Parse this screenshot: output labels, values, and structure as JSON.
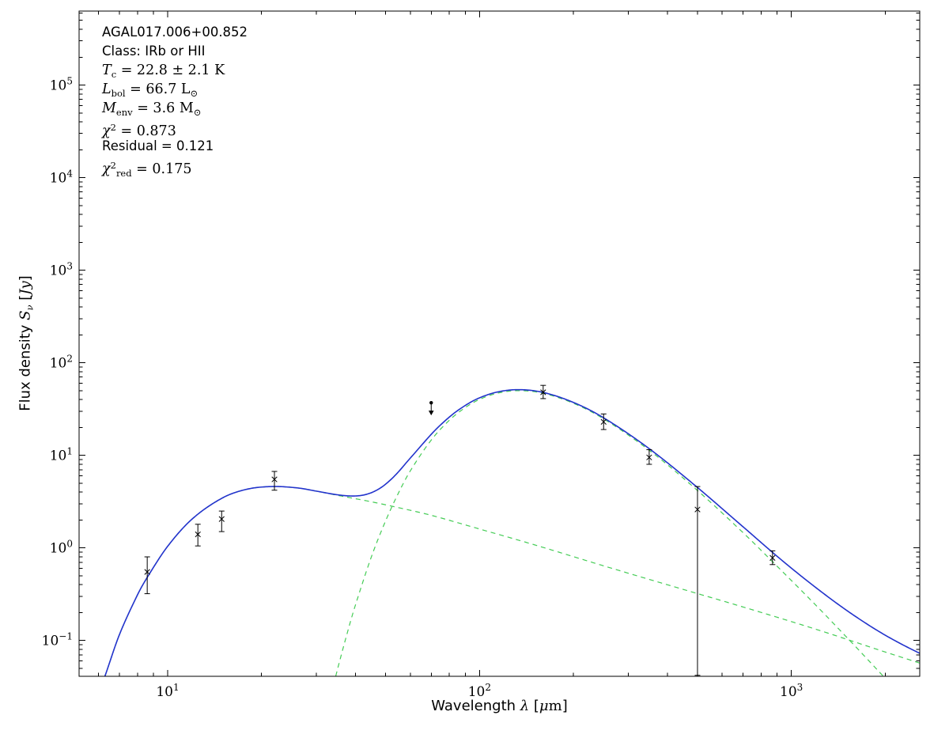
{
  "figure": {
    "background": "#ffffff",
    "frame_color": "#000000",
    "tick_color": "#000000"
  },
  "chart_data": {
    "type": "line",
    "title": "",
    "xscale": "log",
    "yscale": "log",
    "xlim": [
      5.2,
      2580
    ],
    "ylim": [
      0.041,
      630000
    ],
    "grid": false,
    "legend": "none",
    "x_major_ticks": [
      10,
      100,
      1000
    ],
    "y_major_ticks": [
      0.1,
      1,
      10,
      100,
      1000,
      10000,
      100000
    ],
    "xlabel_parts": [
      {
        "t": "Wavelength ",
        "f": "sans"
      },
      {
        "t": "λ",
        "f": "mathit"
      },
      {
        "t": " [",
        "f": "sans"
      },
      {
        "t": "μ",
        "f": "mathit"
      },
      {
        "t": "m",
        "f": "math"
      },
      {
        "t": "]",
        "f": "sans"
      }
    ],
    "ylabel_parts": [
      {
        "t": "Flux density ",
        "f": "sans"
      },
      {
        "t": "S",
        "f": "mathit"
      },
      {
        "t": "ν",
        "f": "mathit",
        "sub": 1
      },
      {
        "t": " [",
        "f": "sans"
      },
      {
        "t": "Jy",
        "f": "mathit"
      },
      {
        "t": "]",
        "f": "sans"
      }
    ],
    "colors": {
      "model_total": "#2233cc",
      "model_component": "#44cc55",
      "data": "#000000"
    },
    "series": [
      {
        "name": "warm-component",
        "role": "component",
        "line": "dashed",
        "points": [
          [
            5.2,
            0.0167
          ],
          [
            6,
            0.028
          ],
          [
            7,
            0.115
          ],
          [
            8,
            0.31
          ],
          [
            8.6,
            0.48
          ],
          [
            10,
            1.04
          ],
          [
            12,
            2.06
          ],
          [
            15,
            3.47
          ],
          [
            18,
            4.31
          ],
          [
            21.6,
            4.6
          ],
          [
            26,
            4.45
          ],
          [
            30,
            4.1
          ],
          [
            35,
            3.7
          ],
          [
            40,
            3.4
          ],
          [
            45,
            3.15
          ],
          [
            55,
            2.72
          ],
          [
            70,
            2.25
          ],
          [
            100,
            1.6
          ],
          [
            150,
            1.08
          ],
          [
            250,
            0.64
          ],
          [
            400,
            0.4
          ],
          [
            700,
            0.23
          ],
          [
            1200,
            0.132
          ],
          [
            2000,
            0.075
          ],
          [
            2580,
            0.057
          ]
        ]
      },
      {
        "name": "cold-component",
        "role": "component",
        "line": "dashed",
        "points": [
          [
            30,
            0.005
          ],
          [
            33,
            0.0212
          ],
          [
            35,
            0.048
          ],
          [
            38,
            0.134
          ],
          [
            40,
            0.241
          ],
          [
            45,
            0.8
          ],
          [
            50,
            1.96
          ],
          [
            55,
            3.93
          ],
          [
            60,
            6.8
          ],
          [
            70,
            14.6
          ],
          [
            80,
            23.9
          ],
          [
            90,
            32.8
          ],
          [
            100,
            40.2
          ],
          [
            115,
            47.2
          ],
          [
            134,
            50
          ],
          [
            160,
            46.8
          ],
          [
            200,
            36.5
          ],
          [
            250,
            24.8
          ],
          [
            350,
            11.35
          ],
          [
            500,
            4.17
          ],
          [
            700,
            1.46
          ],
          [
            870,
            0.71
          ],
          [
            1200,
            0.239
          ],
          [
            1600,
            0.087
          ],
          [
            2000,
            0.039
          ],
          [
            2580,
            0.0157
          ]
        ]
      },
      {
        "name": "total-model",
        "role": "sum",
        "line": "solid"
      }
    ],
    "data_points": [
      {
        "x": 8.6,
        "y": 0.55,
        "ylo": 0.32,
        "yhi": 0.8
      },
      {
        "x": 12.5,
        "y": 1.4,
        "ylo": 1.05,
        "yhi": 1.8
      },
      {
        "x": 14.9,
        "y": 2.05,
        "ylo": 1.5,
        "yhi": 2.5
      },
      {
        "x": 22,
        "y": 5.5,
        "ylo": 4.2,
        "yhi": 6.7
      },
      {
        "x": 160,
        "y": 48,
        "ylo": 41,
        "yhi": 57
      },
      {
        "x": 250,
        "y": 23,
        "ylo": 19,
        "yhi": 28
      },
      {
        "x": 350,
        "y": 9.5,
        "ylo": 8,
        "yhi": 11.5
      },
      {
        "x": 500,
        "y": 2.6,
        "ylo": 0.042,
        "yhi": 4.6
      },
      {
        "x": 870,
        "y": 0.78,
        "ylo": 0.66,
        "yhi": 0.93
      }
    ],
    "upper_limits": [
      {
        "x": 70,
        "y": 37
      }
    ],
    "annotations": [
      {
        "style": "sans",
        "parts": [
          {
            "t": "AGAL017.006+00.852"
          }
        ]
      },
      {
        "style": "sans",
        "parts": [
          {
            "t": "Class: IRb or HII"
          }
        ]
      },
      {
        "style": "math",
        "parts": [
          {
            "t": "T",
            "i": 1
          },
          {
            "t": "c",
            "sub": 1
          },
          {
            "t": " = 22.8 ± 2.1 K"
          }
        ]
      },
      {
        "style": "math",
        "parts": [
          {
            "t": "L",
            "i": 1
          },
          {
            "t": "bol",
            "sub": 1
          },
          {
            "t": " = 66.7 L"
          },
          {
            "t": "⊙",
            "sub": 1
          }
        ]
      },
      {
        "style": "math",
        "parts": [
          {
            "t": "M",
            "i": 1
          },
          {
            "t": "env",
            "sub": 1
          },
          {
            "t": " = 3.6 M"
          },
          {
            "t": "⊙",
            "sub": 1
          }
        ]
      },
      {
        "style": "math",
        "parts": [
          {
            "t": "χ",
            "i": 1
          },
          {
            "t": "2",
            "sup": 1
          },
          {
            "t": " = 0.873"
          }
        ]
      },
      {
        "style": "sans",
        "parts": [
          {
            "t": "Residual = 0.121"
          }
        ]
      },
      {
        "style": "math",
        "parts": [
          {
            "t": "χ",
            "i": 1
          },
          {
            "t": "2",
            "sup": 1
          },
          {
            "t": "red",
            "sub": 1
          },
          {
            "t": " = 0.175"
          }
        ]
      }
    ]
  }
}
